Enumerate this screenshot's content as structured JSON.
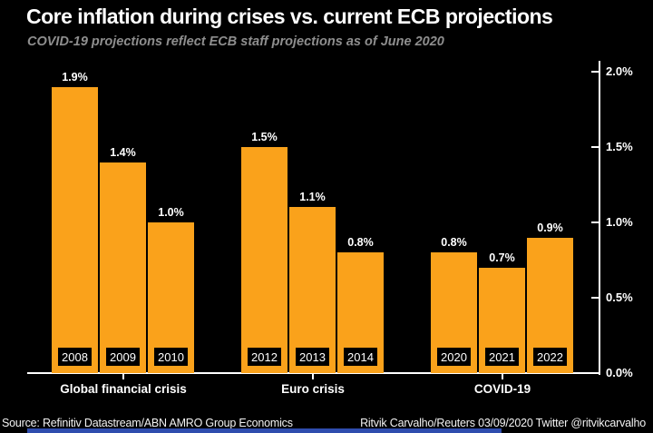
{
  "title": "Core inflation during crises vs. current ECB projections",
  "subtitle": "COVID-19 projections reflect ECB staff projections as of June 2020",
  "footer": {
    "source": "Source: Refinitiv Datastream/ABN AMRO Group Economics",
    "credit": "Ritvik Carvalho/Reuters 03/09/2020 Twitter @ritvikcarvalho"
  },
  "colors": {
    "background": "#000000",
    "bar": "#faa21b",
    "axis": "#ffffff",
    "subtitle_text": "#8e8e8e",
    "progress_bar": "#2f4dae"
  },
  "chart_data": {
    "type": "bar",
    "title": "Core inflation during crises vs. current ECB projections",
    "subtitle": "COVID-19 projections reflect ECB staff projections as of June 2020",
    "xlabel": "",
    "ylabel": "",
    "ylim": [
      0,
      2.0
    ],
    "grid": false,
    "legend": false,
    "axis_position": "right",
    "yticks": [
      {
        "value": 0.0,
        "label": "0.0%"
      },
      {
        "value": 0.5,
        "label": "0.5%"
      },
      {
        "value": 1.0,
        "label": "1.0%"
      },
      {
        "value": 1.5,
        "label": "1.5%"
      },
      {
        "value": 2.0,
        "label": "2.0%"
      }
    ],
    "groups": [
      {
        "label": "Global financial crisis",
        "bars": [
          {
            "year": "2008",
            "value": 1.9,
            "value_label": "1.9%"
          },
          {
            "year": "2009",
            "value": 1.4,
            "value_label": "1.4%"
          },
          {
            "year": "2010",
            "value": 1.0,
            "value_label": "1.0%"
          }
        ]
      },
      {
        "label": "Euro crisis",
        "bars": [
          {
            "year": "2012",
            "value": 1.5,
            "value_label": "1.5%"
          },
          {
            "year": "2013",
            "value": 1.1,
            "value_label": "1.1%"
          },
          {
            "year": "2014",
            "value": 0.8,
            "value_label": "0.8%"
          }
        ]
      },
      {
        "label": "COVID-19",
        "bars": [
          {
            "year": "2020",
            "value": 0.8,
            "value_label": "0.8%"
          },
          {
            "year": "2021",
            "value": 0.7,
            "value_label": "0.7%"
          },
          {
            "year": "2022",
            "value": 0.9,
            "value_label": "0.9%"
          }
        ]
      }
    ]
  }
}
